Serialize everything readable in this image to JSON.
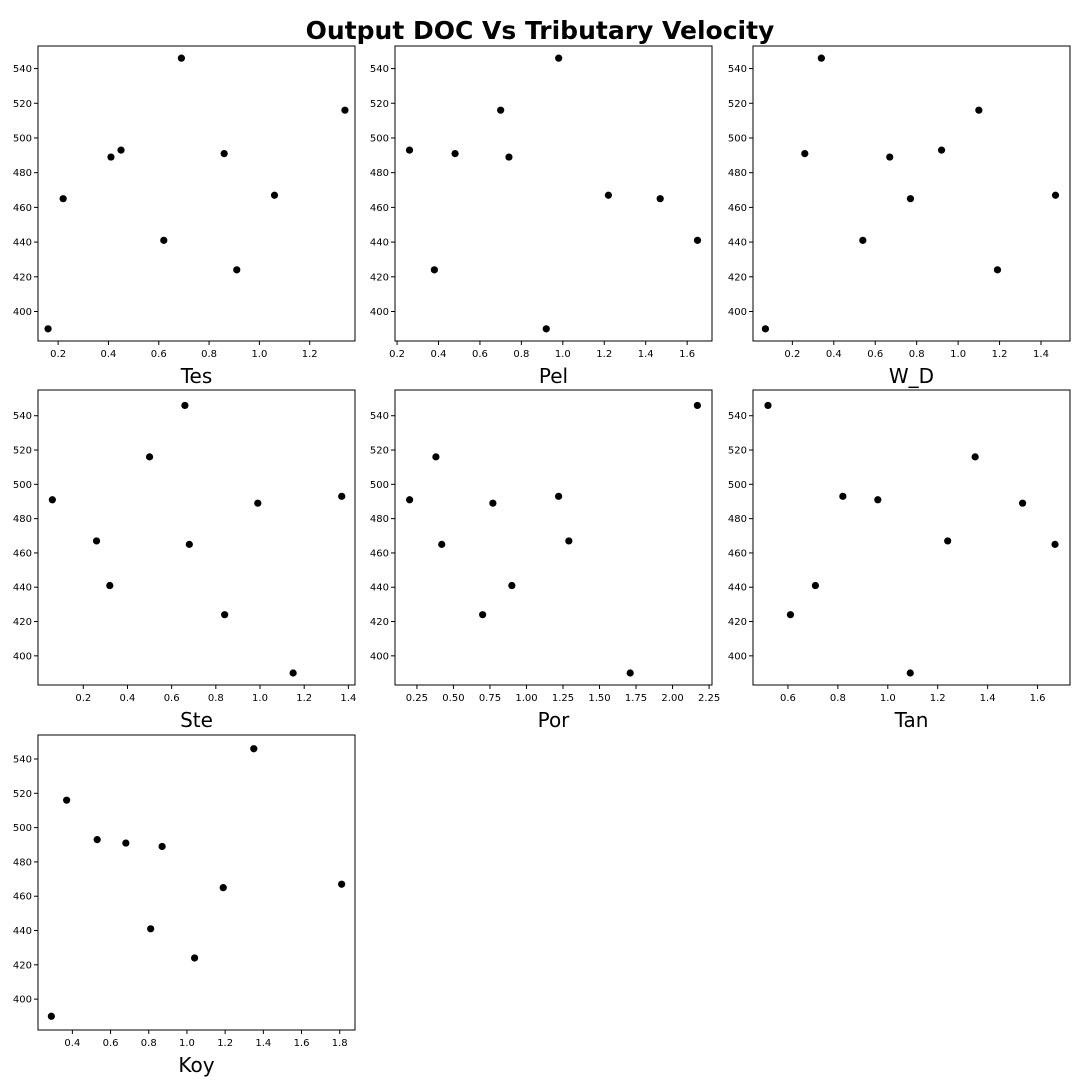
{
  "figure": {
    "title": "Output DOC Vs Tributary Velocity"
  },
  "style": {
    "marker_color": "#000000",
    "axes_color": "#000000",
    "background": "#ffffff"
  },
  "chart_data": [
    {
      "type": "scatter",
      "xlabel": "Tes",
      "ylabel": "",
      "grid": false,
      "xlim": [
        0.12,
        1.38
      ],
      "ylim": [
        383,
        553
      ],
      "xticks": [
        0.2,
        0.4,
        0.6,
        0.8,
        1.0,
        1.2
      ],
      "xtick_labels": [
        "0.2",
        "0.4",
        "0.6",
        "0.8",
        "1.0",
        "1.2"
      ],
      "yticks": [
        400,
        420,
        440,
        460,
        480,
        500,
        520,
        540
      ],
      "ytick_labels": [
        "400",
        "420",
        "440",
        "460",
        "480",
        "500",
        "520",
        "540"
      ],
      "points": [
        {
          "x": 0.16,
          "y": 390
        },
        {
          "x": 0.22,
          "y": 465
        },
        {
          "x": 0.41,
          "y": 489
        },
        {
          "x": 0.45,
          "y": 493
        },
        {
          "x": 0.62,
          "y": 441
        },
        {
          "x": 0.69,
          "y": 546
        },
        {
          "x": 0.86,
          "y": 491
        },
        {
          "x": 0.91,
          "y": 424
        },
        {
          "x": 1.06,
          "y": 467
        },
        {
          "x": 1.34,
          "y": 516
        }
      ]
    },
    {
      "type": "scatter",
      "xlabel": "Pel",
      "ylabel": "",
      "grid": false,
      "xlim": [
        0.19,
        1.72
      ],
      "ylim": [
        383,
        553
      ],
      "xticks": [
        0.2,
        0.4,
        0.6,
        0.8,
        1.0,
        1.2,
        1.4,
        1.6
      ],
      "xtick_labels": [
        "0.2",
        "0.4",
        "0.6",
        "0.8",
        "1.0",
        "1.2",
        "1.4",
        "1.6"
      ],
      "yticks": [
        400,
        420,
        440,
        460,
        480,
        500,
        520,
        540
      ],
      "ytick_labels": [
        "400",
        "420",
        "440",
        "460",
        "480",
        "500",
        "520",
        "540"
      ],
      "points": [
        {
          "x": 0.26,
          "y": 493
        },
        {
          "x": 0.38,
          "y": 424
        },
        {
          "x": 0.48,
          "y": 491
        },
        {
          "x": 0.7,
          "y": 516
        },
        {
          "x": 0.74,
          "y": 489
        },
        {
          "x": 0.92,
          "y": 390
        },
        {
          "x": 0.98,
          "y": 546
        },
        {
          "x": 1.22,
          "y": 467
        },
        {
          "x": 1.47,
          "y": 465
        },
        {
          "x": 1.65,
          "y": 441
        }
      ]
    },
    {
      "type": "scatter",
      "xlabel": "W_D",
      "ylabel": "",
      "grid": false,
      "xlim": [
        0.01,
        1.54
      ],
      "ylim": [
        383,
        553
      ],
      "xticks": [
        0.2,
        0.4,
        0.6,
        0.8,
        1.0,
        1.2,
        1.4
      ],
      "xtick_labels": [
        "0.2",
        "0.4",
        "0.6",
        "0.8",
        "1.0",
        "1.2",
        "1.4"
      ],
      "yticks": [
        400,
        420,
        440,
        460,
        480,
        500,
        520,
        540
      ],
      "ytick_labels": [
        "400",
        "420",
        "440",
        "460",
        "480",
        "500",
        "520",
        "540"
      ],
      "points": [
        {
          "x": 0.07,
          "y": 390
        },
        {
          "x": 0.26,
          "y": 491
        },
        {
          "x": 0.34,
          "y": 546
        },
        {
          "x": 0.54,
          "y": 441
        },
        {
          "x": 0.67,
          "y": 489
        },
        {
          "x": 0.77,
          "y": 465
        },
        {
          "x": 0.92,
          "y": 493
        },
        {
          "x": 1.1,
          "y": 516
        },
        {
          "x": 1.19,
          "y": 424
        },
        {
          "x": 1.47,
          "y": 467
        }
      ]
    },
    {
      "type": "scatter",
      "xlabel": "Ste",
      "ylabel": "",
      "grid": false,
      "xlim": [
        -0.005,
        1.43
      ],
      "ylim": [
        383,
        555
      ],
      "xticks": [
        0.2,
        0.4,
        0.6,
        0.8,
        1.0,
        1.2,
        1.4
      ],
      "xtick_labels": [
        "0.2",
        "0.4",
        "0.6",
        "0.8",
        "1.0",
        "1.2",
        "1.4"
      ],
      "yticks": [
        400,
        420,
        440,
        460,
        480,
        500,
        520,
        540
      ],
      "ytick_labels": [
        "400",
        "420",
        "440",
        "460",
        "480",
        "500",
        "520",
        "540"
      ],
      "points": [
        {
          "x": 0.06,
          "y": 491
        },
        {
          "x": 0.26,
          "y": 467
        },
        {
          "x": 0.32,
          "y": 441
        },
        {
          "x": 0.5,
          "y": 516
        },
        {
          "x": 0.66,
          "y": 546
        },
        {
          "x": 0.68,
          "y": 465
        },
        {
          "x": 0.84,
          "y": 424
        },
        {
          "x": 0.99,
          "y": 489
        },
        {
          "x": 1.15,
          "y": 390
        },
        {
          "x": 1.37,
          "y": 493
        }
      ]
    },
    {
      "type": "scatter",
      "xlabel": "Por",
      "ylabel": "",
      "grid": false,
      "xlim": [
        0.1,
        2.27
      ],
      "ylim": [
        383,
        555
      ],
      "xticks": [
        0.25,
        0.5,
        0.75,
        1.0,
        1.25,
        1.5,
        1.75,
        2.0,
        2.25
      ],
      "xtick_labels": [
        "0.25",
        "0.50",
        "0.75",
        "1.00",
        "1.25",
        "1.50",
        "1.75",
        "2.00",
        "2.25"
      ],
      "yticks": [
        400,
        420,
        440,
        460,
        480,
        500,
        520,
        540
      ],
      "ytick_labels": [
        "400",
        "420",
        "440",
        "460",
        "480",
        "500",
        "520",
        "540"
      ],
      "points": [
        {
          "x": 0.2,
          "y": 491
        },
        {
          "x": 0.38,
          "y": 516
        },
        {
          "x": 0.42,
          "y": 465
        },
        {
          "x": 0.7,
          "y": 424
        },
        {
          "x": 0.77,
          "y": 489
        },
        {
          "x": 0.9,
          "y": 441
        },
        {
          "x": 1.22,
          "y": 493
        },
        {
          "x": 1.29,
          "y": 467
        },
        {
          "x": 1.71,
          "y": 390
        },
        {
          "x": 2.17,
          "y": 546
        }
      ]
    },
    {
      "type": "scatter",
      "xlabel": "Tan",
      "ylabel": "",
      "grid": false,
      "xlim": [
        0.46,
        1.73
      ],
      "ylim": [
        383,
        555
      ],
      "xticks": [
        0.6,
        0.8,
        1.0,
        1.2,
        1.4,
        1.6
      ],
      "xtick_labels": [
        "0.6",
        "0.8",
        "1.0",
        "1.2",
        "1.4",
        "1.6"
      ],
      "yticks": [
        400,
        420,
        440,
        460,
        480,
        500,
        520,
        540
      ],
      "ytick_labels": [
        "400",
        "420",
        "440",
        "460",
        "480",
        "500",
        "520",
        "540"
      ],
      "points": [
        {
          "x": 0.52,
          "y": 546
        },
        {
          "x": 0.61,
          "y": 424
        },
        {
          "x": 0.71,
          "y": 441
        },
        {
          "x": 0.82,
          "y": 493
        },
        {
          "x": 0.96,
          "y": 491
        },
        {
          "x": 1.09,
          "y": 390
        },
        {
          "x": 1.24,
          "y": 467
        },
        {
          "x": 1.35,
          "y": 516
        },
        {
          "x": 1.54,
          "y": 489
        },
        {
          "x": 1.67,
          "y": 465
        }
      ]
    },
    {
      "type": "scatter",
      "xlabel": "Koy",
      "ylabel": "",
      "grid": false,
      "xlim": [
        0.22,
        1.88
      ],
      "ylim": [
        382,
        554
      ],
      "xticks": [
        0.4,
        0.6,
        0.8,
        1.0,
        1.2,
        1.4,
        1.6,
        1.8
      ],
      "xtick_labels": [
        "0.4",
        "0.6",
        "0.8",
        "1.0",
        "1.2",
        "1.4",
        "1.6",
        "1.8"
      ],
      "yticks": [
        400,
        420,
        440,
        460,
        480,
        500,
        520,
        540
      ],
      "ytick_labels": [
        "400",
        "420",
        "440",
        "460",
        "480",
        "500",
        "520",
        "540"
      ],
      "points": [
        {
          "x": 0.29,
          "y": 390
        },
        {
          "x": 0.37,
          "y": 516
        },
        {
          "x": 0.53,
          "y": 493
        },
        {
          "x": 0.68,
          "y": 491
        },
        {
          "x": 0.81,
          "y": 441
        },
        {
          "x": 0.87,
          "y": 489
        },
        {
          "x": 1.04,
          "y": 424
        },
        {
          "x": 1.19,
          "y": 465
        },
        {
          "x": 1.35,
          "y": 546
        },
        {
          "x": 1.81,
          "y": 467
        }
      ]
    }
  ]
}
